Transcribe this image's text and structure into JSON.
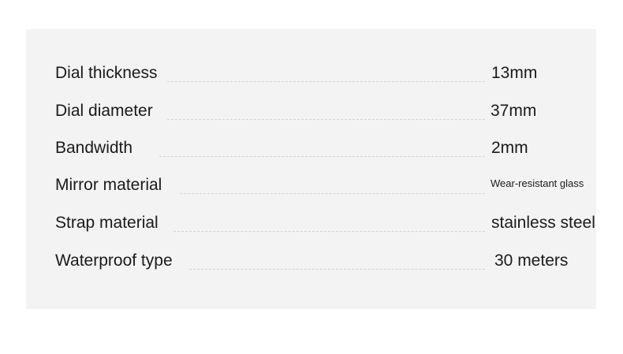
{
  "specs": [
    {
      "label": "Dial thickness",
      "value": "13mm"
    },
    {
      "label": "Dial diameter",
      "value": "37mm"
    },
    {
      "label": "Bandwidth",
      "value": "2mm"
    },
    {
      "label": "Mirror material",
      "value": "Wear-resistant glass"
    },
    {
      "label": "Strap material",
      "value": "stainless steel"
    },
    {
      "label": "Waterproof type",
      "value": "30 meters"
    }
  ]
}
